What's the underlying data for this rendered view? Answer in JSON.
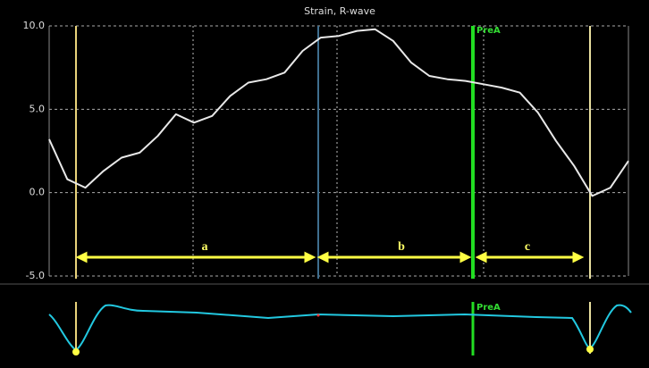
{
  "chart_data": {
    "type": "line",
    "title": "Strain, R-wave",
    "categories": [
      null,
      null,
      null,
      null,
      null,
      null,
      null,
      null,
      null,
      null,
      null,
      null,
      null,
      null,
      null,
      null,
      null,
      null,
      null,
      null,
      null,
      null,
      null,
      null,
      null,
      null,
      null,
      null,
      null,
      null,
      null,
      null,
      null
    ],
    "series": [
      {
        "color": "#e8e8e8",
        "values": [
          3.2,
          0.8,
          0.3,
          1.3,
          2.1,
          2.4,
          3.4,
          4.7,
          4.2,
          4.6,
          5.8,
          6.6,
          6.8,
          7.2,
          8.5,
          9.3,
          9.4,
          9.7,
          9.8,
          9.1,
          7.8,
          7.0,
          6.8,
          6.7,
          6.5,
          6.3,
          6.0,
          4.8,
          3.1,
          1.6,
          -0.2,
          0.3,
          1.9
        ]
      }
    ],
    "ylim": [
      -5,
      10
    ],
    "yticks": [
      {
        "value": 10,
        "label": "10.0"
      },
      {
        "value": 5,
        "label": "5.0"
      },
      {
        "value": 0,
        "label": "0.0"
      },
      {
        "value": -5,
        "label": "-5.0"
      }
    ],
    "grid": true,
    "marker_label": "PreA",
    "annotations": [
      "a",
      "b",
      "c"
    ]
  }
}
